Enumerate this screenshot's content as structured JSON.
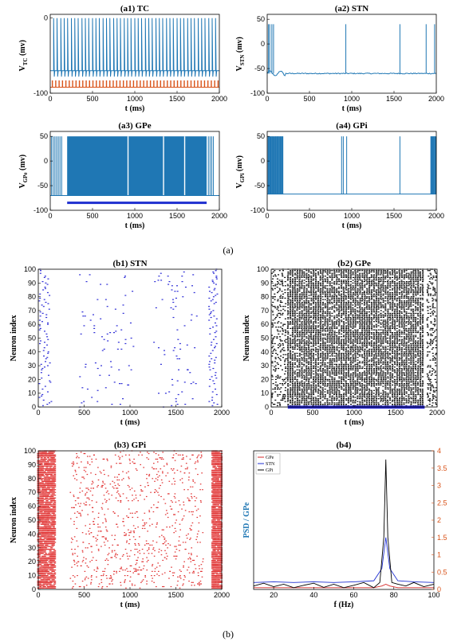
{
  "captions": {
    "a": "(a)",
    "b": "(b)"
  },
  "colors": {
    "trace": "#1f77b4",
    "tc_stim": "#d95319",
    "gpe_stim": "#1f2fd0",
    "stn_raster": "#2b2bd6",
    "gpe_raster": "#000000",
    "gpi_raster": "#e03030",
    "psd_gpe": "#d62728",
    "psd_stn": "#1f2fd0",
    "psd_gpi": "#000000",
    "right_axis": "#d95319",
    "left_axis_label": "#1f77b4"
  },
  "chart_data": [
    {
      "id": "a1",
      "type": "line",
      "title": "(a1) TC",
      "xlabel": "t (ms)",
      "ylabel_main": "V",
      "ylabel_sub": "TC",
      "ylabel_unit": "(mv)",
      "xlim": [
        0,
        2000
      ],
      "ylim": [
        -100,
        5
      ],
      "xticks": [
        0,
        500,
        1000,
        1500,
        2000
      ],
      "yticks": [
        0,
        -100
      ],
      "resting_mv": -70,
      "spike_peak_mv": 0,
      "spike_times_ms": [
        40,
        80,
        125,
        165,
        205,
        250,
        290,
        330,
        375,
        415,
        455,
        500,
        540,
        580,
        625,
        665,
        705,
        750,
        790,
        830,
        875,
        915,
        955,
        1000,
        1040,
        1080,
        1125,
        1165,
        1205,
        1250,
        1290,
        1330,
        1375,
        1415,
        1455,
        1500,
        1540,
        1580,
        1625,
        1665,
        1705,
        1750,
        1790,
        1830,
        1875,
        1915,
        1955
      ],
      "stim_times_ms": [
        25,
        65,
        105,
        145,
        185,
        225,
        265,
        305,
        345,
        385,
        425,
        465,
        505,
        545,
        585,
        625,
        665,
        705,
        745,
        785,
        825,
        865,
        905,
        945,
        985,
        1025,
        1065,
        1105,
        1145,
        1185,
        1225,
        1265,
        1305,
        1345,
        1385,
        1425,
        1465,
        1505,
        1545,
        1585,
        1625,
        1665,
        1705,
        1745,
        1785,
        1825,
        1865,
        1905,
        1945,
        1985
      ],
      "stim_low_mv": -92,
      "stim_high_mv": -83
    },
    {
      "id": "a2",
      "type": "line",
      "title": "(a2) STN",
      "xlabel": "t (ms)",
      "ylabel_main": "V",
      "ylabel_sub": "STN",
      "ylabel_unit": "(mv)",
      "xlim": [
        0,
        2000
      ],
      "ylim": [
        -100,
        60
      ],
      "xticks": [
        0,
        500,
        1000,
        1500,
        2000
      ],
      "yticks": [
        50,
        0,
        -50,
        -100
      ],
      "baseline_mv": -60,
      "spike_times_ms": [
        15,
        30,
        55,
        75,
        930,
        1570,
        1880,
        1980
      ],
      "spike_peak_mv": 40
    },
    {
      "id": "a3",
      "type": "line",
      "title": "(a3) GPe",
      "xlabel": "t (ms)",
      "ylabel_main": "V",
      "ylabel_sub": "GPe",
      "ylabel_unit": "(mv)",
      "xlim": [
        0,
        2000
      ],
      "ylim": [
        -100,
        60
      ],
      "xticks": [
        0,
        500,
        1000,
        1500,
        2000
      ],
      "yticks": [
        50,
        0,
        -50,
        -100
      ],
      "baseline_mv": -70,
      "spike_peak_mv": 50,
      "burst_start_ms": 200,
      "burst_end_ms": 1850,
      "gap_times_ms": [
        920,
        1340,
        1590
      ],
      "pre_spikes_ms": [
        15,
        35,
        55,
        75,
        95,
        115,
        135
      ],
      "post_spikes_ms": [
        1870,
        1890,
        1910,
        1930
      ],
      "stim_level_mv": -84
    },
    {
      "id": "a4",
      "type": "line",
      "title": "(a4) GPi",
      "xlabel": "t (ms)",
      "ylabel_main": "V",
      "ylabel_sub": "GPi",
      "ylabel_unit": "(mv)",
      "xlim": [
        0,
        2000
      ],
      "ylim": [
        -100,
        60
      ],
      "xticks": [
        0,
        500,
        1000,
        1500,
        2000
      ],
      "yticks": [
        50,
        0,
        -50,
        -100
      ],
      "baseline_mv": -67,
      "spike_peak_mv": 50,
      "spike_times_ms": [
        15,
        30,
        45,
        60,
        80,
        100,
        120,
        140,
        160,
        180,
        880,
        900,
        940,
        1570,
        1940,
        1955,
        1970,
        1985
      ],
      "burst_ranges_ms": [
        [
          10,
          190
        ],
        [
          1935,
          2000
        ]
      ]
    },
    {
      "id": "b1",
      "type": "scatter",
      "title": "(b1) STN",
      "xlabel": "t (ms)",
      "ylabel": "Neuron index",
      "xlim": [
        0,
        2000
      ],
      "ylim": [
        0,
        100
      ],
      "xticks": [
        0,
        500,
        1000,
        1500,
        2000
      ],
      "yticks": [
        0,
        10,
        20,
        30,
        40,
        50,
        60,
        70,
        80,
        90,
        100
      ]
    },
    {
      "id": "b2",
      "type": "scatter",
      "title": "(b2) GPe",
      "xlabel": "t (ms)",
      "ylabel": "Neuron index",
      "xlim": [
        0,
        2000
      ],
      "ylim": [
        0,
        100
      ],
      "xticks": [
        0,
        500,
        1000,
        1500,
        2000
      ],
      "yticks": [
        0,
        10,
        20,
        30,
        40,
        50,
        60,
        70,
        80,
        90,
        100
      ],
      "stim_range_ms": [
        200,
        1850
      ]
    },
    {
      "id": "b3",
      "type": "scatter",
      "title": "(b3) GPi",
      "xlabel": "t (ms)",
      "ylabel": "Neuron index",
      "xlim": [
        0,
        2000
      ],
      "ylim": [
        0,
        100
      ],
      "xticks": [
        0,
        500,
        1000,
        1500,
        2000
      ],
      "yticks": [
        0,
        10,
        20,
        30,
        40,
        50,
        60,
        70,
        80,
        90,
        100
      ]
    },
    {
      "id": "b4",
      "type": "line",
      "title": "(b4)",
      "xlabel": "f (Hz)",
      "ylabel_left": "PSD / GPe",
      "xlim": [
        10,
        100
      ],
      "ylim_right": [
        0,
        4
      ],
      "xticks": [
        20,
        40,
        60,
        80,
        100
      ],
      "yticks_right": [
        0,
        0.5,
        1,
        1.5,
        2,
        2.5,
        3,
        3.5,
        4
      ],
      "legend": [
        "GPe",
        "STN",
        "GPi"
      ],
      "legend_position": "top-left",
      "peak_hz": 76,
      "series": [
        {
          "name": "GPe",
          "x": [
            10,
            20,
            30,
            40,
            50,
            60,
            70,
            74,
            76,
            78,
            82,
            90,
            100
          ],
          "y": [
            0.05,
            0.05,
            0.05,
            0.05,
            0.05,
            0.05,
            0.05,
            0.1,
            0.15,
            0.1,
            0.05,
            0.05,
            0.05
          ]
        },
        {
          "name": "STN",
          "x": [
            10,
            20,
            30,
            40,
            50,
            60,
            70,
            74,
            76,
            78,
            82,
            90,
            100
          ],
          "y": [
            0.2,
            0.22,
            0.2,
            0.22,
            0.2,
            0.22,
            0.25,
            0.6,
            1.5,
            0.6,
            0.25,
            0.22,
            0.2
          ]
        },
        {
          "name": "GPi",
          "x": [
            10,
            15,
            20,
            25,
            30,
            35,
            40,
            45,
            50,
            55,
            60,
            65,
            70,
            73,
            75,
            76,
            77,
            79,
            82,
            86,
            90,
            95,
            100
          ],
          "y": [
            0.1,
            0.18,
            0.08,
            0.15,
            0.05,
            0.12,
            0.18,
            0.06,
            0.15,
            0.05,
            0.12,
            0.2,
            0.05,
            0.2,
            1.5,
            3.75,
            1.5,
            0.2,
            0.15,
            0.1,
            0.2,
            0.08,
            0.15
          ]
        }
      ]
    }
  ]
}
